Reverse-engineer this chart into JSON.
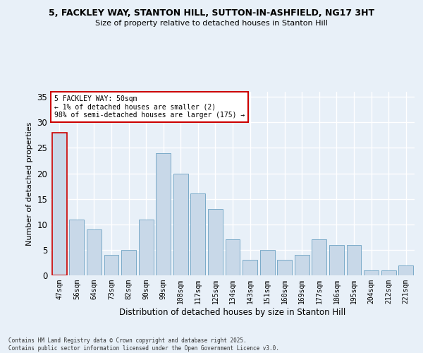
{
  "title1": "5, FACKLEY WAY, STANTON HILL, SUTTON-IN-ASHFIELD, NG17 3HT",
  "title2": "Size of property relative to detached houses in Stanton Hill",
  "xlabel": "Distribution of detached houses by size in Stanton Hill",
  "ylabel": "Number of detached properties",
  "categories": [
    "47sqm",
    "56sqm",
    "64sqm",
    "73sqm",
    "82sqm",
    "90sqm",
    "99sqm",
    "108sqm",
    "117sqm",
    "125sqm",
    "134sqm",
    "143sqm",
    "151sqm",
    "160sqm",
    "169sqm",
    "177sqm",
    "186sqm",
    "195sqm",
    "204sqm",
    "212sqm",
    "221sqm"
  ],
  "values": [
    28,
    11,
    9,
    4,
    5,
    11,
    24,
    20,
    16,
    13,
    7,
    3,
    5,
    3,
    4,
    7,
    6,
    6,
    1,
    1,
    2
  ],
  "bar_color": "#c8d8e8",
  "bar_edge_color": "#7aaac8",
  "highlight_index": 0,
  "highlight_edge_color": "#cc0000",
  "annotation_box_color": "#ffffff",
  "annotation_edge_color": "#cc0000",
  "annotation_text_line1": "5 FACKLEY WAY: 50sqm",
  "annotation_text_line2": "← 1% of detached houses are smaller (2)",
  "annotation_text_line3": "98% of semi-detached houses are larger (175) →",
  "background_color": "#e8f0f8",
  "plot_background_color": "#e8f0f8",
  "grid_color": "#ffffff",
  "ylim": [
    0,
    36
  ],
  "yticks": [
    0,
    5,
    10,
    15,
    20,
    25,
    30,
    35
  ],
  "footer_line1": "Contains HM Land Registry data © Crown copyright and database right 2025.",
  "footer_line2": "Contains public sector information licensed under the Open Government Licence v3.0."
}
